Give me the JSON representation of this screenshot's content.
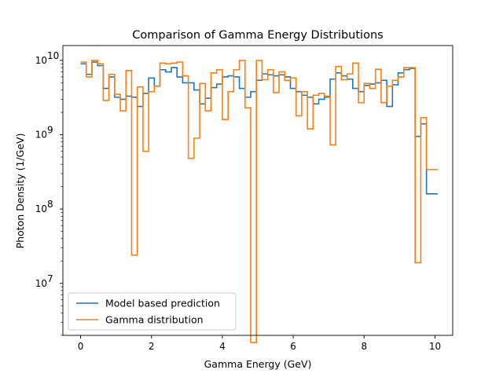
{
  "chart_data": {
    "type": "line",
    "drawstyle": "steps",
    "title": "Comparison of Gamma Energy Distributions",
    "xlabel": "Gamma Energy (GeV)",
    "ylabel": "Photon Density (1/GeV)",
    "xlim": [
      -0.5,
      10.5
    ],
    "ylim_log10": [
      6.3,
      10.2
    ],
    "yscale": "log",
    "x_ticks": [
      0,
      2,
      4,
      6,
      8,
      10
    ],
    "y_ticks": [
      {
        "exp": 7,
        "label": "10",
        "sup": "7"
      },
      {
        "exp": 8,
        "label": "10",
        "sup": "8"
      },
      {
        "exp": 9,
        "label": "10",
        "sup": "9"
      },
      {
        "exp": 10,
        "label": "10",
        "sup": "10"
      }
    ],
    "legend_position": "lower-left",
    "bin_edges": [
      0,
      0.16,
      0.32,
      0.48,
      0.64,
      0.8,
      0.96,
      1.12,
      1.28,
      1.44,
      1.6,
      1.76,
      1.92,
      2.08,
      2.24,
      2.4,
      2.56,
      2.72,
      2.88,
      3.04,
      3.2,
      3.36,
      3.52,
      3.68,
      3.84,
      4,
      4.16,
      4.32,
      4.48,
      4.64,
      4.8,
      4.96,
      5.12,
      5.28,
      5.44,
      5.6,
      5.76,
      5.92,
      6.08,
      6.24,
      6.4,
      6.56,
      6.72,
      6.88,
      7.04,
      7.2,
      7.36,
      7.52,
      7.68,
      7.84,
      8,
      8.16,
      8.32,
      8.48,
      8.64,
      8.8,
      8.96,
      9.12,
      9.28,
      9.44,
      9.6,
      9.76,
      9.92,
      10.08
    ],
    "series": [
      {
        "name": "Model based prediction",
        "color": "#1f77b4",
        "values": [
          9000000000.0,
          6500000000.0,
          9500000000.0,
          8500000000.0,
          4200000000.0,
          6000000000.0,
          3200000000.0,
          3000000000.0,
          3300000000.0,
          3200000000.0,
          2400000000.0,
          3600000000.0,
          5800000000.0,
          4500000000.0,
          7500000000.0,
          7000000000.0,
          8000000000.0,
          6000000000.0,
          5000000000.0,
          5000000000.0,
          4000000000.0,
          2600000000.0,
          3100000000.0,
          4300000000.0,
          4800000000.0,
          6000000000.0,
          6200000000.0,
          6000000000.0,
          4200000000.0,
          3200000000.0,
          3800000000.0,
          5400000000.0,
          6600000000.0,
          6400000000.0,
          6200000000.0,
          6400000000.0,
          6000000000.0,
          4200000000.0,
          3800000000.0,
          3400000000.0,
          3200000000.0,
          2600000000.0,
          3000000000.0,
          3200000000.0,
          5600000000.0,
          6800000000.0,
          6200000000.0,
          5600000000.0,
          4200000000.0,
          3800000000.0,
          4600000000.0,
          4800000000.0,
          5000000000.0,
          5400000000.0,
          2400000000.0,
          4700000000.0,
          6800000000.0,
          7500000000.0,
          7800000000.0,
          950000000.0,
          1400000000.0,
          160000000.0,
          160000000.0
        ]
      },
      {
        "name": "Gamma distribution",
        "color": "#ff7f0e",
        "values": [
          9500000000.0,
          6000000000.0,
          10000000000.0,
          9000000000.0,
          2900000000.0,
          6500000000.0,
          3500000000.0,
          2100000000.0,
          7300000000.0,
          24000000.0,
          4400000000.0,
          600000000.0,
          3800000000.0,
          4500000000.0,
          9200000000.0,
          9000000000.0,
          9200000000.0,
          9500000000.0,
          6200000000.0,
          480000000.0,
          900000000.0,
          4900000000.0,
          2100000000.0,
          6800000000.0,
          7500000000.0,
          1600000000.0,
          3800000000.0,
          7500000000.0,
          10000000000.0,
          2300000000.0,
          1600000.0,
          10000000000.0,
          5500000000.0,
          7500000000.0,
          3700000000.0,
          7000000000.0,
          5400000000.0,
          5800000000.0,
          1800000000.0,
          3800000000.0,
          1200000000.0,
          3400000000.0,
          3600000000.0,
          3300000000.0,
          730000000.0,
          8300000000.0,
          5500000000.0,
          6600000000.0,
          9200000000.0,
          2700000000.0,
          4900000000.0,
          4200000000.0,
          7600000000.0,
          2700000000.0,
          4500000000.0,
          5400000000.0,
          6000000000.0,
          8000000000.0,
          8000000000.0,
          19000000.0,
          1700000000.0,
          340000000.0,
          340000000.0
        ]
      }
    ]
  }
}
